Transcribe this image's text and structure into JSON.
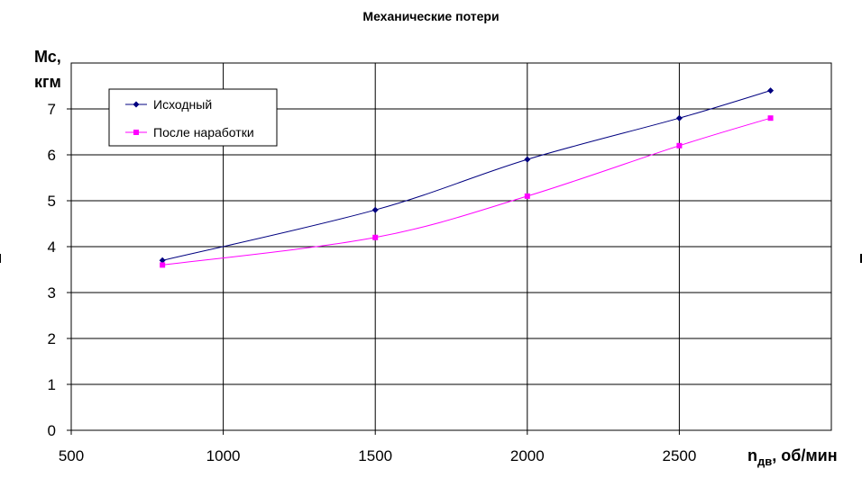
{
  "chart_data": {
    "type": "line",
    "title": "Механические потери",
    "ylabel_line1": "Мс,",
    "ylabel_line2": "кгм",
    "xlabel_main": "n",
    "xlabel_sub": "дв",
    "xlabel_rest": ", об/мин",
    "xlim": [
      500,
      3000
    ],
    "ylim": [
      0,
      8
    ],
    "xticks": [
      500,
      1000,
      1500,
      2000,
      2500
    ],
    "yticks": [
      0,
      1,
      2,
      3,
      4,
      5,
      6,
      7
    ],
    "grid": true,
    "legend_position": "top-left",
    "series": [
      {
        "name": "Исходный",
        "color": "#000080",
        "marker": "diamond",
        "x": [
          800,
          1500,
          2000,
          2500,
          2800
        ],
        "y": [
          3.7,
          4.8,
          5.9,
          6.8,
          7.4
        ]
      },
      {
        "name": "После наработки",
        "color": "#ff00ff",
        "marker": "square",
        "x": [
          800,
          1500,
          2000,
          2500,
          2800
        ],
        "y": [
          3.6,
          4.2,
          5.1,
          6.2,
          6.8
        ]
      }
    ]
  }
}
